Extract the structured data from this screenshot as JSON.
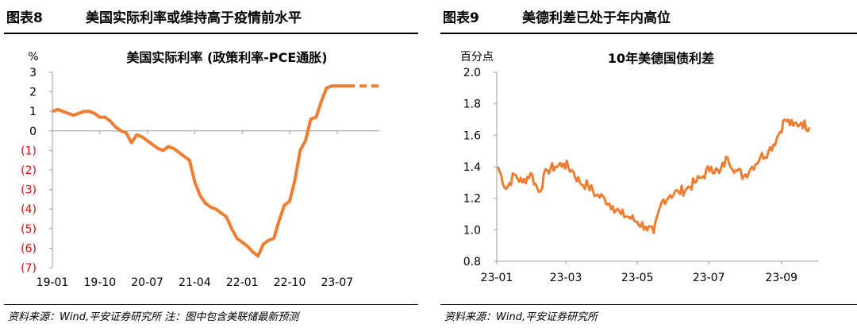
{
  "left": {
    "figure_no": "图表8",
    "headline": "美国实际利率或维持高于疫情前水平",
    "source": "资料来源：Wind,平安证券研究所 注：图中包含美联储最新预测"
  },
  "right": {
    "figure_no": "图表9",
    "headline": "美德利差已处于年内高位",
    "source": "资料来源：Wind,平安证券研究所"
  },
  "colors": {
    "line": "#ed7d31",
    "negative_tick": "#e10a0a",
    "axis": "#999999"
  },
  "chart_data": [
    {
      "type": "line",
      "title": "美国实际利率 (政策利率-PCE通胀)",
      "ylabel": "%",
      "ylim": [
        -7,
        3
      ],
      "yticks": [
        "3",
        "2",
        "1",
        "0",
        "(1)",
        "(2)",
        "(3)",
        "(4)",
        "(5)",
        "(6)",
        "(7)"
      ],
      "xticks": [
        "19-01",
        "19-10",
        "20-07",
        "21-04",
        "22-01",
        "22-10",
        "23-07"
      ],
      "grid": false,
      "series": [
        {
          "style": "solid",
          "x": [
            "2019-01",
            "2019-02",
            "2019-03",
            "2019-04",
            "2019-05",
            "2019-06",
            "2019-07",
            "2019-08",
            "2019-09",
            "2019-10",
            "2019-11",
            "2019-12",
            "2020-01",
            "2020-02",
            "2020-03",
            "2020-04",
            "2020-05",
            "2020-06",
            "2020-07",
            "2020-08",
            "2020-09",
            "2020-10",
            "2020-11",
            "2020-12",
            "2021-01",
            "2021-02",
            "2021-03",
            "2021-04",
            "2021-05",
            "2021-06",
            "2021-07",
            "2021-08",
            "2021-09",
            "2021-10",
            "2021-11",
            "2021-12",
            "2022-01",
            "2022-02",
            "2022-03",
            "2022-04",
            "2022-05",
            "2022-06",
            "2022-07",
            "2022-08",
            "2022-09",
            "2022-10",
            "2022-11",
            "2022-12",
            "2023-01",
            "2023-02",
            "2023-03",
            "2023-04",
            "2023-05",
            "2023-06",
            "2023-07",
            "2023-08",
            "2023-09"
          ],
          "values": [
            1.0,
            1.1,
            1.0,
            0.9,
            0.8,
            0.9,
            1.0,
            1.0,
            0.9,
            0.7,
            0.7,
            0.5,
            0.2,
            0.0,
            -0.1,
            -0.6,
            -0.2,
            -0.3,
            -0.5,
            -0.7,
            -0.9,
            -1.0,
            -0.8,
            -0.9,
            -1.1,
            -1.3,
            -1.5,
            -2.6,
            -3.3,
            -3.7,
            -3.9,
            -4.0,
            -4.2,
            -4.4,
            -5.0,
            -5.5,
            -5.7,
            -5.9,
            -6.2,
            -6.4,
            -5.8,
            -5.6,
            -5.5,
            -4.6,
            -3.8,
            -3.6,
            -2.5,
            -1.0,
            -0.5,
            0.6,
            0.7,
            1.5,
            2.2,
            2.3,
            2.3,
            2.3,
            2.3
          ]
        },
        {
          "style": "dashed",
          "x": [
            "2023-09",
            "2023-10",
            "2023-11",
            "2023-12",
            "2024-01",
            "2024-02",
            "2024-03"
          ],
          "values": [
            2.3,
            2.3,
            2.3,
            2.3,
            2.3,
            2.3,
            2.3
          ]
        }
      ]
    },
    {
      "type": "line",
      "title": "10年美德国债利差",
      "ylabel": "百分点",
      "ylim": [
        0.8,
        2.0
      ],
      "yticks": [
        "2.0",
        "1.8",
        "1.6",
        "1.4",
        "1.2",
        "1.0",
        "0.8"
      ],
      "xticks": [
        "23-01",
        "23-03",
        "23-05",
        "23-07",
        "23-09"
      ],
      "grid": false,
      "series": [
        {
          "x": [
            "2023-01-02",
            "2023-01-09",
            "2023-01-16",
            "2023-01-23",
            "2023-01-30",
            "2023-02-06",
            "2023-02-13",
            "2023-02-20",
            "2023-02-27",
            "2023-03-06",
            "2023-03-13",
            "2023-03-20",
            "2023-03-27",
            "2023-04-03",
            "2023-04-10",
            "2023-04-17",
            "2023-04-24",
            "2023-05-01",
            "2023-05-08",
            "2023-05-15",
            "2023-05-22",
            "2023-05-29",
            "2023-06-05",
            "2023-06-12",
            "2023-06-19",
            "2023-06-26",
            "2023-07-03",
            "2023-07-10",
            "2023-07-17",
            "2023-07-24",
            "2023-07-31",
            "2023-08-07",
            "2023-08-14",
            "2023-08-21",
            "2023-08-28",
            "2023-09-04",
            "2023-09-11",
            "2023-09-18",
            "2023-09-25"
          ],
          "values": [
            1.4,
            1.26,
            1.35,
            1.3,
            1.36,
            1.24,
            1.38,
            1.4,
            1.42,
            1.38,
            1.3,
            1.28,
            1.22,
            1.2,
            1.15,
            1.1,
            1.08,
            1.05,
            1.02,
            0.98,
            1.18,
            1.22,
            1.24,
            1.26,
            1.3,
            1.34,
            1.4,
            1.36,
            1.46,
            1.38,
            1.34,
            1.4,
            1.46,
            1.5,
            1.58,
            1.7,
            1.66,
            1.68,
            1.65
          ]
        }
      ]
    }
  ]
}
